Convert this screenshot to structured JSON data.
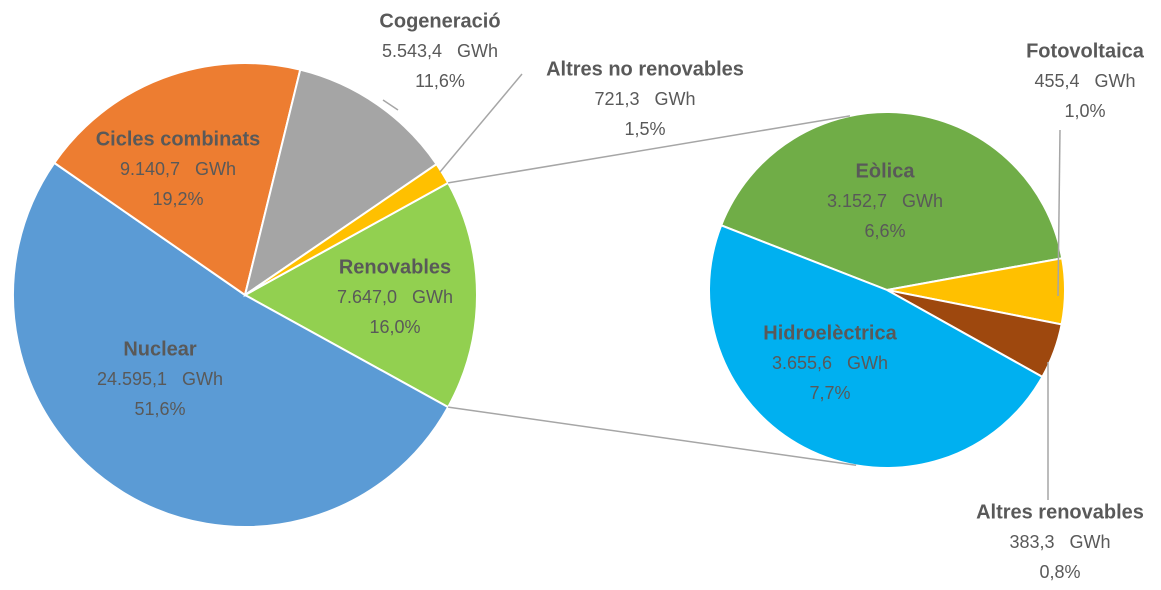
{
  "chart_data": {
    "type": "pie_of_pie",
    "categories": [
      "Nuclear",
      "Cicles combinats",
      "Cogeneració",
      "Altres no renovables",
      "Renovables"
    ],
    "values": [
      24595.1,
      9140.7,
      5543.4,
      721.3,
      7647.0
    ],
    "value_labels": [
      "24.595,1   GWh",
      "9.140,7   GWh",
      "5.543,4   GWh",
      "721,3   GWh",
      "7.647,0   GWh"
    ],
    "percent_labels": [
      "51,6%",
      "19,2%",
      "11,6%",
      "1,5%",
      "16,0%"
    ],
    "colors": [
      "#5b9bd5",
      "#ed7d31",
      "#a5a5a5",
      "#ffc000",
      "#92d050"
    ],
    "secondary": {
      "categories": [
        "Eòlica",
        "Fotovoltaica",
        "Altres renovables",
        "Hidroelèctrica"
      ],
      "values": [
        3152.7,
        455.4,
        383.3,
        3655.6
      ],
      "value_labels": [
        "3.152,7   GWh",
        "455,4   GWh",
        "383,3   GWh",
        "3.655,6   GWh"
      ],
      "percent_labels": [
        "6,6%",
        "1,0%",
        "0,8%",
        "7,7%"
      ],
      "colors": [
        "#70ad47",
        "#ffc000",
        "#9e480e",
        "#00b0f0"
      ]
    }
  }
}
